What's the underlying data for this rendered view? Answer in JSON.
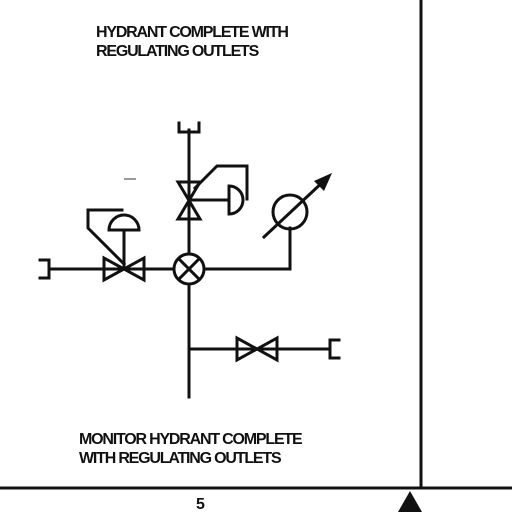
{
  "diagram": {
    "title_top": {
      "line1": "HYDRANT COMPLETE WITH",
      "line2": "REGULATING OUTLETS"
    },
    "title_bottom": {
      "line1": "MONITOR HYDRANT COMPLETE",
      "line2": "WITH REGULATING OUTLETS"
    },
    "page_number": "5"
  },
  "colors": {
    "ink": "#111111",
    "background": "#ffffff"
  }
}
